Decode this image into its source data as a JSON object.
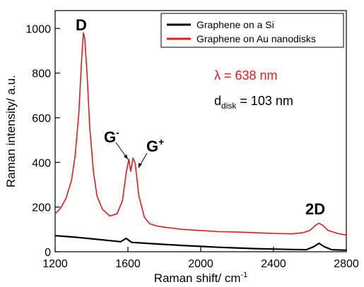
{
  "chart_data": {
    "type": "line",
    "xlabel": "Raman shift/ cm",
    "xlabel_sup": "-1",
    "ylabel": "Raman intensity/ a.u.",
    "xlim": [
      1200,
      2800
    ],
    "ylim": [
      0,
      1080
    ],
    "x_ticks": [
      "1200",
      "1600",
      "2000",
      "2400",
      "2800"
    ],
    "y_ticks": [
      "0",
      "200",
      "400",
      "600",
      "800",
      "1000"
    ],
    "grid": false,
    "legend_position": "top-right",
    "series": [
      {
        "name": "Graphene on a Si",
        "color": "#000000",
        "points": [
          [
            1200,
            72
          ],
          [
            1300,
            66
          ],
          [
            1400,
            58
          ],
          [
            1500,
            50
          ],
          [
            1560,
            45
          ],
          [
            1590,
            60
          ],
          [
            1620,
            42
          ],
          [
            1700,
            38
          ],
          [
            1800,
            33
          ],
          [
            1900,
            28
          ],
          [
            2000,
            24
          ],
          [
            2100,
            20
          ],
          [
            2200,
            17
          ],
          [
            2300,
            14
          ],
          [
            2400,
            12
          ],
          [
            2500,
            10
          ],
          [
            2580,
            9
          ],
          [
            2620,
            22
          ],
          [
            2650,
            38
          ],
          [
            2680,
            22
          ],
          [
            2720,
            9
          ],
          [
            2800,
            7
          ]
        ]
      },
      {
        "name": "Graphene on Au nanodisks",
        "color": "#e01b1b",
        "points": [
          [
            1200,
            170
          ],
          [
            1230,
            195
          ],
          [
            1260,
            240
          ],
          [
            1290,
            320
          ],
          [
            1310,
            430
          ],
          [
            1330,
            620
          ],
          [
            1345,
            850
          ],
          [
            1355,
            980
          ],
          [
            1362,
            960
          ],
          [
            1375,
            800
          ],
          [
            1390,
            560
          ],
          [
            1410,
            360
          ],
          [
            1430,
            250
          ],
          [
            1460,
            190
          ],
          [
            1500,
            160
          ],
          [
            1540,
            170
          ],
          [
            1570,
            230
          ],
          [
            1590,
            350
          ],
          [
            1605,
            415
          ],
          [
            1615,
            360
          ],
          [
            1628,
            420
          ],
          [
            1640,
            395
          ],
          [
            1660,
            250
          ],
          [
            1690,
            155
          ],
          [
            1720,
            125
          ],
          [
            1760,
            115
          ],
          [
            1800,
            110
          ],
          [
            1900,
            100
          ],
          [
            2000,
            95
          ],
          [
            2100,
            90
          ],
          [
            2200,
            88
          ],
          [
            2300,
            85
          ],
          [
            2400,
            82
          ],
          [
            2500,
            80
          ],
          [
            2560,
            85
          ],
          [
            2600,
            95
          ],
          [
            2630,
            118
          ],
          [
            2650,
            128
          ],
          [
            2670,
            118
          ],
          [
            2700,
            95
          ],
          [
            2750,
            82
          ],
          [
            2800,
            75
          ]
        ]
      }
    ],
    "annotations": {
      "d_peak": "D",
      "g_minus_base": "G",
      "g_minus_sup": "-",
      "g_plus_base": "G",
      "g_plus_sup": "+",
      "two_d": "2D",
      "lambda": "λ = 638 nm",
      "d_base": "d",
      "d_sub": "disk",
      "d_value": " = 103 nm"
    }
  }
}
